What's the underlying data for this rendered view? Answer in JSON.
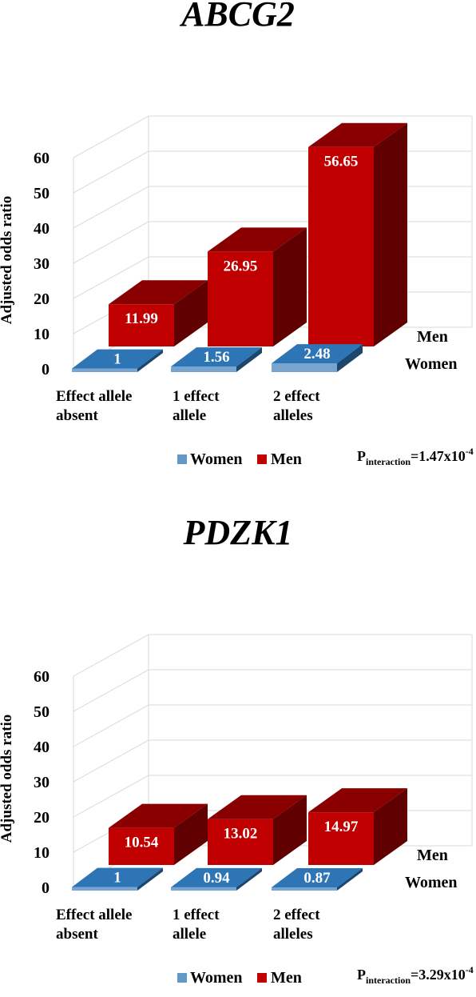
{
  "chart_data": [
    {
      "type": "bar",
      "title": "ABCG2",
      "ylabel": "Adjusted odds ratio",
      "ylim": [
        0,
        60
      ],
      "yticks": [
        "0",
        "10",
        "20",
        "30",
        "40",
        "50",
        "60"
      ],
      "categories": [
        [
          "Effect allele",
          "absent"
        ],
        [
          "1 effect",
          "allele"
        ],
        [
          "2 effect",
          "alleles"
        ]
      ],
      "depth_labels": [
        "Men",
        "Women"
      ],
      "series": [
        {
          "name": "Women",
          "values": [
            1,
            1.56,
            2.48
          ],
          "labels": [
            "1",
            "1.56",
            "2.48"
          ],
          "color": "#2e75b6"
        },
        {
          "name": "Men",
          "values": [
            11.99,
            26.95,
            56.65
          ],
          "labels": [
            "11.99",
            "26.95",
            "56.65"
          ],
          "color": "#c00000"
        }
      ],
      "legend": {
        "position": "bottom",
        "items": [
          "Women",
          "Men"
        ]
      },
      "p_interaction": {
        "prefix": "P",
        "subscript": "interaction",
        "value": "=1.47x10",
        "exponent": "-4"
      }
    },
    {
      "type": "bar",
      "title": "PDZK1",
      "ylabel": "Adjusted odds ratio",
      "ylim": [
        0,
        60
      ],
      "yticks": [
        "0",
        "10",
        "20",
        "30",
        "40",
        "50",
        "60"
      ],
      "categories": [
        [
          "Effect allele",
          "absent"
        ],
        [
          "1 effect",
          "allele"
        ],
        [
          "2 effect",
          "alleles"
        ]
      ],
      "depth_labels": [
        "Men",
        "Women"
      ],
      "series": [
        {
          "name": "Women",
          "values": [
            1,
            0.94,
            0.87
          ],
          "labels": [
            "1",
            "0.94",
            "0.87"
          ],
          "color": "#2e75b6"
        },
        {
          "name": "Men",
          "values": [
            10.54,
            13.02,
            14.97
          ],
          "labels": [
            "10.54",
            "13.02",
            "14.97"
          ],
          "color": "#c00000"
        }
      ],
      "legend": {
        "position": "bottom",
        "items": [
          "Women",
          "Men"
        ]
      },
      "p_interaction": {
        "prefix": "P",
        "subscript": "interaction",
        "value": "=3.29x10",
        "exponent": "-4"
      }
    }
  ]
}
